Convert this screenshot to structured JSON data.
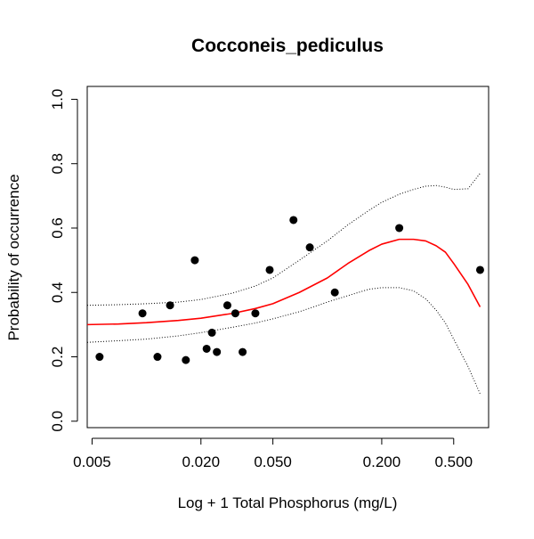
{
  "chart_data": {
    "type": "scatter",
    "title": "Cocconeis_pediculus",
    "xlabel": "Log + 1 Total Phosphorus (mg/L)",
    "ylabel": "Probability of occurrence",
    "x_scale": "log",
    "xlim": [
      0.0047,
      0.78
    ],
    "ylim": [
      -0.02,
      1.04
    ],
    "x_ticks": [
      0.005,
      0.02,
      0.05,
      0.2,
      0.5
    ],
    "x_tick_labels": [
      "0.005",
      "0.020",
      "0.050",
      "0.200",
      "0.500"
    ],
    "y_ticks": [
      0.0,
      0.2,
      0.4,
      0.6,
      0.8,
      1.0
    ],
    "y_tick_labels": [
      "0.0",
      "0.2",
      "0.4",
      "0.6",
      "0.8",
      "1.0"
    ],
    "grid": false,
    "colors": {
      "points": "#000000",
      "fit": "#ff0000",
      "ci": "#000000"
    },
    "points": [
      {
        "x": 0.0055,
        "y": 0.2
      },
      {
        "x": 0.0095,
        "y": 0.335
      },
      {
        "x": 0.0115,
        "y": 0.2
      },
      {
        "x": 0.0135,
        "y": 0.36
      },
      {
        "x": 0.0165,
        "y": 0.19
      },
      {
        "x": 0.0185,
        "y": 0.5
      },
      {
        "x": 0.0215,
        "y": 0.225
      },
      {
        "x": 0.023,
        "y": 0.275
      },
      {
        "x": 0.0245,
        "y": 0.215
      },
      {
        "x": 0.028,
        "y": 0.36
      },
      {
        "x": 0.031,
        "y": 0.335
      },
      {
        "x": 0.034,
        "y": 0.215
      },
      {
        "x": 0.04,
        "y": 0.335
      },
      {
        "x": 0.048,
        "y": 0.47
      },
      {
        "x": 0.065,
        "y": 0.625
      },
      {
        "x": 0.08,
        "y": 0.54
      },
      {
        "x": 0.11,
        "y": 0.4
      },
      {
        "x": 0.25,
        "y": 0.6
      },
      {
        "x": 0.7,
        "y": 0.47
      }
    ],
    "series": [
      {
        "style": "solid",
        "color": "#ff0000",
        "x": [
          0.0047,
          0.007,
          0.01,
          0.015,
          0.02,
          0.03,
          0.04,
          0.05,
          0.07,
          0.1,
          0.13,
          0.17,
          0.2,
          0.25,
          0.3,
          0.35,
          0.4,
          0.45,
          0.5,
          0.6,
          0.7
        ],
        "y": [
          0.3,
          0.302,
          0.306,
          0.313,
          0.32,
          0.335,
          0.35,
          0.365,
          0.4,
          0.445,
          0.49,
          0.53,
          0.55,
          0.565,
          0.565,
          0.56,
          0.545,
          0.525,
          0.49,
          0.425,
          0.355
        ]
      },
      {
        "style": "dotted",
        "color": "#000000",
        "x": [
          0.0047,
          0.007,
          0.01,
          0.015,
          0.02,
          0.03,
          0.04,
          0.05,
          0.07,
          0.1,
          0.13,
          0.17,
          0.2,
          0.25,
          0.3,
          0.35,
          0.4,
          0.45,
          0.5,
          0.6,
          0.7
        ],
        "y": [
          0.36,
          0.362,
          0.365,
          0.37,
          0.378,
          0.398,
          0.42,
          0.445,
          0.5,
          0.56,
          0.61,
          0.655,
          0.68,
          0.705,
          0.72,
          0.73,
          0.732,
          0.727,
          0.72,
          0.722,
          0.77
        ]
      },
      {
        "style": "dotted",
        "color": "#000000",
        "x": [
          0.0047,
          0.007,
          0.01,
          0.015,
          0.02,
          0.03,
          0.04,
          0.05,
          0.07,
          0.1,
          0.13,
          0.17,
          0.2,
          0.25,
          0.3,
          0.35,
          0.4,
          0.45,
          0.5,
          0.6,
          0.7
        ],
        "y": [
          0.245,
          0.25,
          0.255,
          0.265,
          0.275,
          0.292,
          0.305,
          0.318,
          0.34,
          0.37,
          0.39,
          0.41,
          0.415,
          0.415,
          0.405,
          0.38,
          0.345,
          0.305,
          0.255,
          0.17,
          0.085
        ]
      }
    ]
  }
}
